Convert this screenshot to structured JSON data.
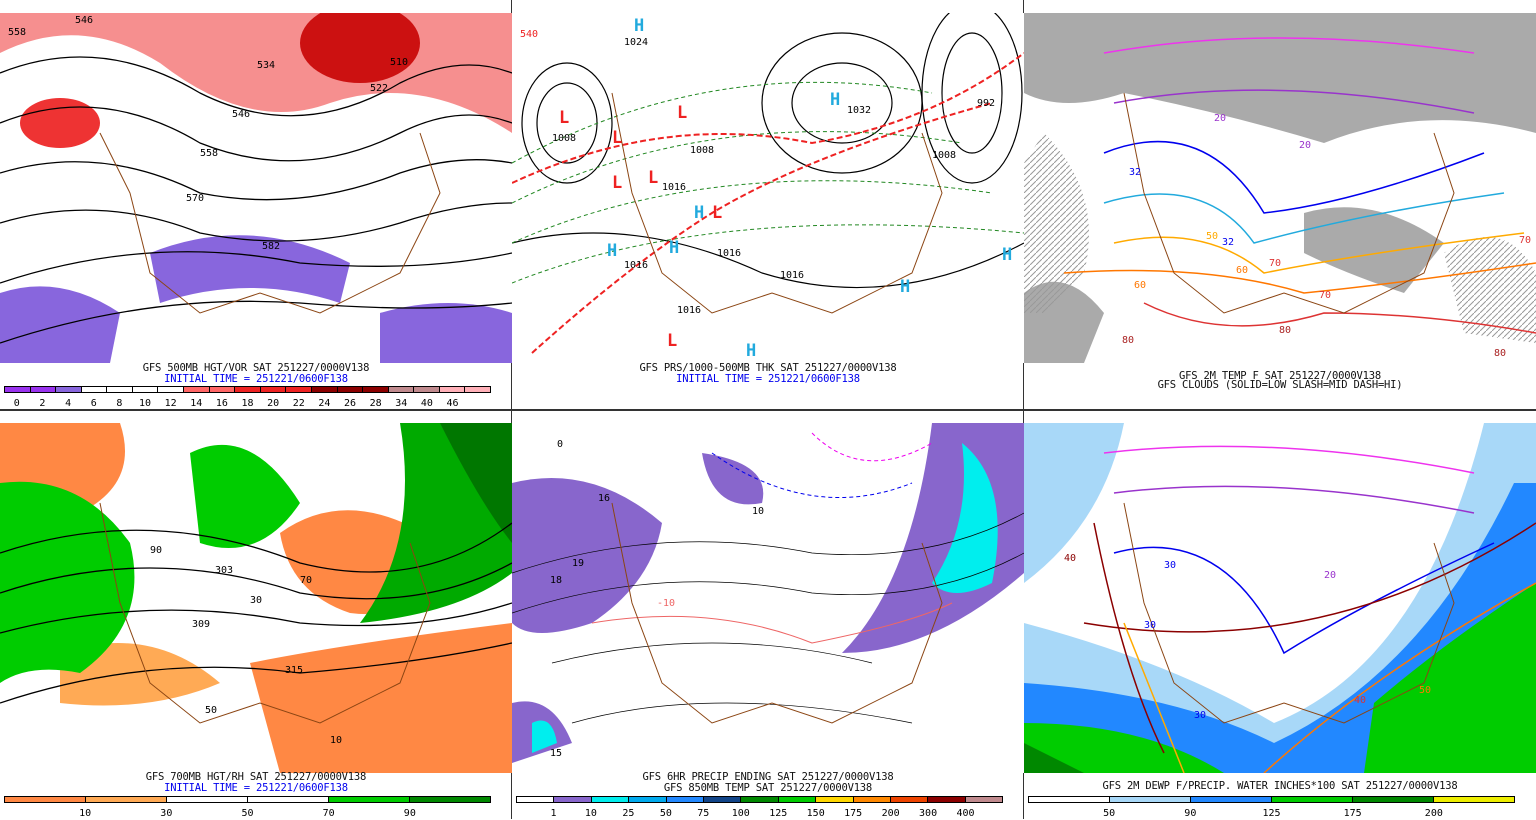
{
  "panels": [
    {
      "id": "500mb",
      "caption": "GFS 500MB HGT/VOR SAT 251227/0000V138",
      "caption2": "INITIAL TIME = 251221/0600F138",
      "legend": {
        "colors": [
          "#9933ee",
          "#9933ee",
          "#8866dd",
          "#ffffff",
          "#ffffff",
          "#ffffff",
          "#ffffff",
          "#ff6666",
          "#ff6666",
          "#ee2222",
          "#ee2222",
          "#ee2222",
          "#8b0000",
          "#8b0000",
          "#8b0000",
          "#c08a8e",
          "#c08a8e",
          "#ffb0b8",
          "#ffb0b8"
        ],
        "labels": [
          "0",
          "2",
          "4",
          "6",
          "8",
          "10",
          "12",
          "14",
          "16",
          "18",
          "20",
          "22",
          "24",
          "26",
          "28",
          "34",
          "40",
          "46"
        ]
      },
      "map_labels": [
        "558",
        "546",
        "534",
        "522",
        "510",
        "546",
        "558",
        "570",
        "582"
      ]
    },
    {
      "id": "prs-thk",
      "caption": "GFS PRS/1000-500MB THK SAT 251227/0000V138",
      "caption2": "INITIAL TIME = 251221/0600F138",
      "map_labels": [
        "1008",
        "1008",
        "1016",
        "1016",
        "1016",
        "1016",
        "1016",
        "1024",
        "1032",
        "992",
        "1008",
        "540"
      ],
      "pressure_centers": [
        "H",
        "H",
        "H",
        "H",
        "H",
        "H",
        "H",
        "H",
        "L",
        "L",
        "L",
        "L",
        "L",
        "L",
        "L"
      ]
    },
    {
      "id": "2m-temp",
      "caption": "GFS 2M TEMP F SAT 251227/0000V138",
      "caption2": "GFS CLOUDS (SOLID=LOW SLASH=MID DASH=HI)",
      "map_labels": [
        "20",
        "20",
        "32",
        "32",
        "50",
        "60",
        "60",
        "70",
        "70",
        "70",
        "80",
        "80",
        "80"
      ]
    },
    {
      "id": "700mb",
      "caption": "GFS 700MB HGT/RH SAT 251227/0000V138",
      "caption2": "INITIAL TIME = 251221/0600F138",
      "legend": {
        "colors": [
          "#ff8844",
          "#ffaa55",
          "#ffffff",
          "#ffffff",
          "#00cc00",
          "#008800"
        ],
        "labels": [
          "10",
          "30",
          "50",
          "70",
          "90"
        ]
      },
      "map_labels": [
        "90",
        "70",
        "50",
        "30",
        "10",
        "303",
        "309",
        "315"
      ]
    },
    {
      "id": "precip",
      "caption": "GFS 6HR PRECIP ENDING SAT 251227/0000V138",
      "caption2": "GFS 850MB TEMP SAT 251227/0000V138",
      "legend": {
        "colors": [
          "#ffffff",
          "#8866cc",
          "#00eeee",
          "#00aaee",
          "#2288ff",
          "#114488",
          "#008800",
          "#00cc00",
          "#ffd700",
          "#ff8800",
          "#ee4400",
          "#8b0000",
          "#c08a8e"
        ],
        "labels": [
          "1",
          "10",
          "25",
          "50",
          "75",
          "100",
          "125",
          "150",
          "175",
          "200",
          "300",
          "400"
        ]
      },
      "map_labels": [
        "0",
        "16",
        "18",
        "19",
        "10",
        "15",
        "-10"
      ]
    },
    {
      "id": "dewp-pw",
      "caption": "GFS 2M DEWP F/PRECIP. WATER INCHES*100 SAT 251227/0000V138",
      "legend": {
        "colors": [
          "#ffffff",
          "#a8d8f8",
          "#2288ff",
          "#00cc00",
          "#008800",
          "#eeee00"
        ],
        "labels": [
          "50",
          "90",
          "125",
          "175",
          "200"
        ]
      },
      "map_labels": [
        "40",
        "30",
        "30",
        "30",
        "20",
        "40",
        "50"
      ]
    }
  ]
}
